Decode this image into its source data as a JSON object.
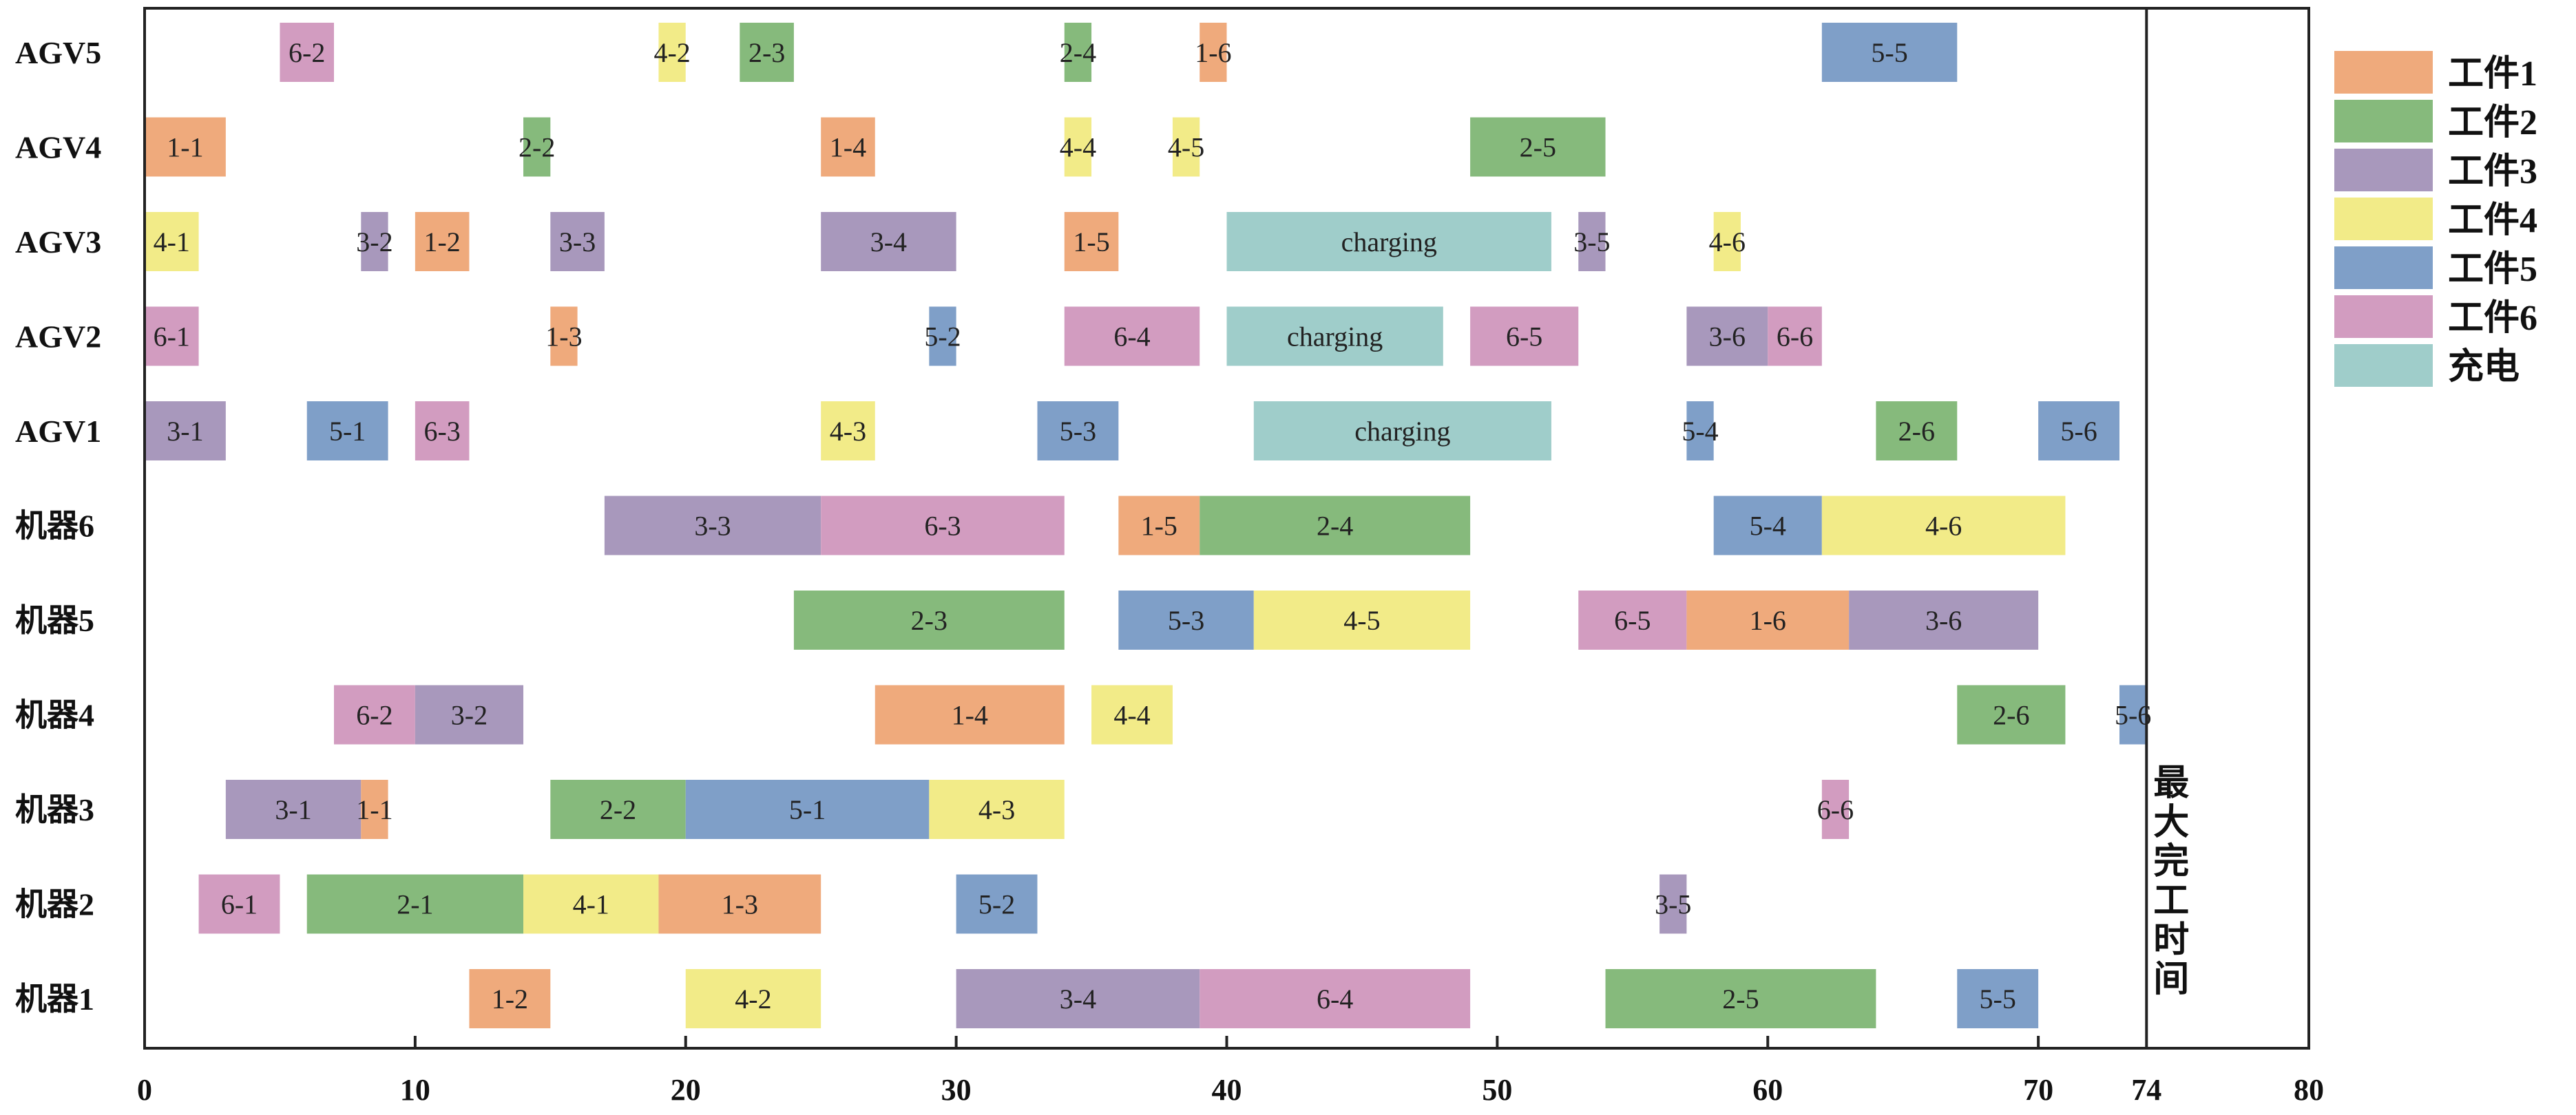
{
  "chart_data": {
    "type": "gantt",
    "title": "",
    "xlabel": "",
    "ylabel": "",
    "xlim": [
      0,
      80
    ],
    "x_ticks": [
      "0",
      "10",
      "20",
      "30",
      "40",
      "50",
      "60",
      "70",
      "74",
      "80"
    ],
    "x_tick_values": [
      0,
      10,
      20,
      30,
      40,
      50,
      60,
      70,
      74,
      80
    ],
    "makespan": 74,
    "makespan_label": "最大完工时间",
    "legend_position": "right",
    "legend": [
      {
        "key": "1",
        "label": "工件1",
        "color": "#EFAA7C"
      },
      {
        "key": "2",
        "label": "工件2",
        "color": "#86BA7C"
      },
      {
        "key": "3",
        "label": "工件3",
        "color": "#A898BC"
      },
      {
        "key": "4",
        "label": "工件4",
        "color": "#F2EB88"
      },
      {
        "key": "5",
        "label": "工件5",
        "color": "#7F9FC8"
      },
      {
        "key": "6",
        "label": "工件6",
        "color": "#D29CC0"
      },
      {
        "key": "c",
        "label": "充电",
        "color": "#9FCDCA"
      }
    ],
    "rows": [
      {
        "name": "AGV5",
        "tasks": [
          [
            "6-2",
            5,
            7,
            "6"
          ],
          [
            "4-2",
            19,
            20,
            "4"
          ],
          [
            "2-3",
            22,
            24,
            "2"
          ],
          [
            "2-4",
            34,
            35,
            "2"
          ],
          [
            "1-6",
            39,
            40,
            "1"
          ],
          [
            "5-5",
            62,
            67,
            "5"
          ]
        ]
      },
      {
        "name": "AGV4",
        "tasks": [
          [
            "1-1",
            0,
            3,
            "1"
          ],
          [
            "2-2",
            14,
            15,
            "2"
          ],
          [
            "1-4",
            25,
            27,
            "1"
          ],
          [
            "4-4",
            34,
            35,
            "4"
          ],
          [
            "4-5",
            38,
            39,
            "4"
          ],
          [
            "2-5",
            49,
            54,
            "2"
          ]
        ]
      },
      {
        "name": "AGV3",
        "tasks": [
          [
            "4-1",
            0,
            2,
            "4"
          ],
          [
            "3-2",
            8,
            9,
            "3"
          ],
          [
            "1-2",
            10,
            12,
            "1"
          ],
          [
            "3-3",
            15,
            17,
            "3"
          ],
          [
            "3-4",
            25,
            30,
            "3"
          ],
          [
            "1-5",
            34,
            36,
            "1"
          ],
          [
            "charging",
            40,
            52,
            "c"
          ],
          [
            "3-5",
            53,
            54,
            "3"
          ],
          [
            "4-6",
            58,
            59,
            "4"
          ]
        ]
      },
      {
        "name": "AGV2",
        "tasks": [
          [
            "6-1",
            0,
            2,
            "6"
          ],
          [
            "1-3",
            15,
            16,
            "1"
          ],
          [
            "5-2",
            29,
            30,
            "5"
          ],
          [
            "6-4",
            34,
            39,
            "6"
          ],
          [
            "charging",
            40,
            48,
            "c"
          ],
          [
            "6-5",
            49,
            53,
            "6"
          ],
          [
            "3-6",
            57,
            60,
            "3"
          ],
          [
            "6-6",
            60,
            62,
            "6"
          ]
        ]
      },
      {
        "name": "AGV1",
        "tasks": [
          [
            "3-1",
            0,
            3,
            "3"
          ],
          [
            "5-1",
            6,
            9,
            "5"
          ],
          [
            "6-3",
            10,
            12,
            "6"
          ],
          [
            "4-3",
            25,
            27,
            "4"
          ],
          [
            "5-3",
            33,
            36,
            "5"
          ],
          [
            "charging",
            41,
            52,
            "c"
          ],
          [
            "5-4",
            57,
            58,
            "5"
          ],
          [
            "2-6",
            64,
            67,
            "2"
          ],
          [
            "5-6",
            70,
            73,
            "5"
          ]
        ]
      },
      {
        "name": "机器6",
        "tasks": [
          [
            "3-3",
            17,
            25,
            "3"
          ],
          [
            "6-3",
            25,
            34,
            "6"
          ],
          [
            "1-5",
            36,
            39,
            "1"
          ],
          [
            "2-4",
            39,
            49,
            "2"
          ],
          [
            "5-4",
            58,
            62,
            "5"
          ],
          [
            "4-6",
            62,
            71,
            "4"
          ]
        ]
      },
      {
        "name": "机器5",
        "tasks": [
          [
            "2-3",
            24,
            34,
            "2"
          ],
          [
            "5-3",
            36,
            41,
            "5"
          ],
          [
            "4-5",
            41,
            49,
            "4"
          ],
          [
            "6-5",
            53,
            57,
            "6"
          ],
          [
            "1-6",
            57,
            63,
            "1"
          ],
          [
            "3-6",
            63,
            70,
            "3"
          ]
        ]
      },
      {
        "name": "机器4",
        "tasks": [
          [
            "6-2",
            7,
            10,
            "6"
          ],
          [
            "3-2",
            10,
            14,
            "3"
          ],
          [
            "1-4",
            27,
            34,
            "1"
          ],
          [
            "4-4",
            35,
            38,
            "4"
          ],
          [
            "2-6",
            67,
            71,
            "2"
          ],
          [
            "5-6",
            73,
            74,
            "5"
          ]
        ]
      },
      {
        "name": "机器3",
        "tasks": [
          [
            "3-1",
            3,
            8,
            "3"
          ],
          [
            "1-1",
            8,
            9,
            "1"
          ],
          [
            "2-2",
            15,
            20,
            "2"
          ],
          [
            "5-1",
            20,
            29,
            "5"
          ],
          [
            "4-3",
            29,
            34,
            "4"
          ],
          [
            "6-6",
            62,
            63,
            "6"
          ]
        ]
      },
      {
        "name": "机器2",
        "tasks": [
          [
            "6-1",
            2,
            5,
            "6"
          ],
          [
            "2-1",
            6,
            14,
            "2"
          ],
          [
            "4-1",
            14,
            19,
            "4"
          ],
          [
            "1-3",
            19,
            25,
            "1"
          ],
          [
            "5-2",
            30,
            33,
            "5"
          ],
          [
            "3-5",
            56,
            57,
            "3"
          ]
        ]
      },
      {
        "name": "机器1",
        "tasks": [
          [
            "1-2",
            12,
            15,
            "1"
          ],
          [
            "4-2",
            20,
            25,
            "4"
          ],
          [
            "3-4",
            30,
            39,
            "3"
          ],
          [
            "6-4",
            39,
            49,
            "6"
          ],
          [
            "2-5",
            54,
            64,
            "2"
          ],
          [
            "5-5",
            67,
            70,
            "5"
          ]
        ]
      }
    ]
  }
}
